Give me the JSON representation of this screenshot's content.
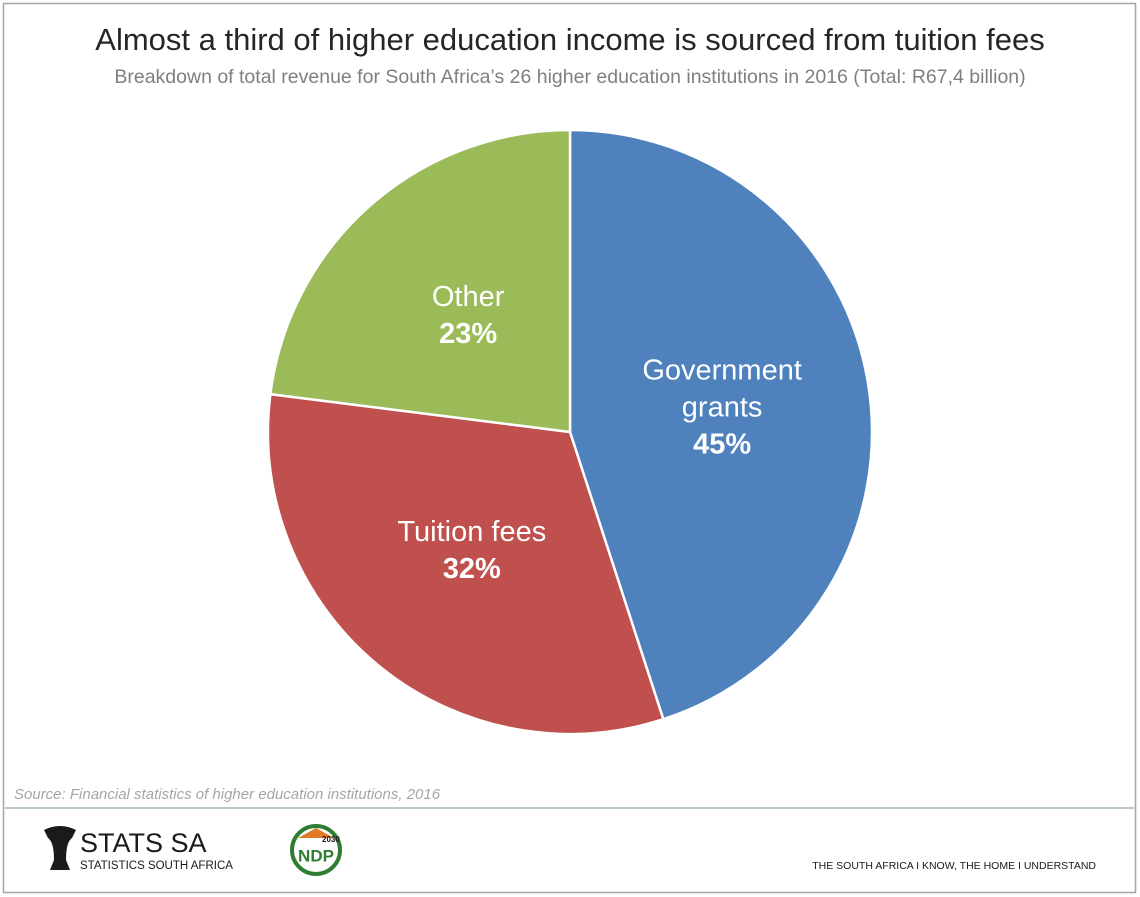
{
  "chart_data": {
    "type": "pie",
    "title": "Almost a third of higher education income is sourced from tuition fees",
    "subtitle": "Breakdown of total revenue for South Africa’s 26 higher education institutions in 2016 (Total: R67,4 billion)",
    "categories": [
      "Government grants",
      "Tuition fees",
      "Other"
    ],
    "values": [
      45,
      32,
      23
    ],
    "value_labels": [
      "45%",
      "32%",
      "23%"
    ],
    "colors": [
      "#4f81bd",
      "#c0504d",
      "#9bbb59"
    ],
    "start_angle": 0,
    "direction": "clockwise"
  },
  "source": "Source: Financial statistics of higher education institutions, 2016",
  "footer": {
    "logo_title": "STATS SA",
    "logo_subtitle": "STATISTICS SOUTH AFRICA",
    "ndp_year": "2030",
    "ndp": "NDP",
    "slogan": "THE SOUTH AFRICA I KNOW, THE HOME I UNDERSTAND"
  }
}
